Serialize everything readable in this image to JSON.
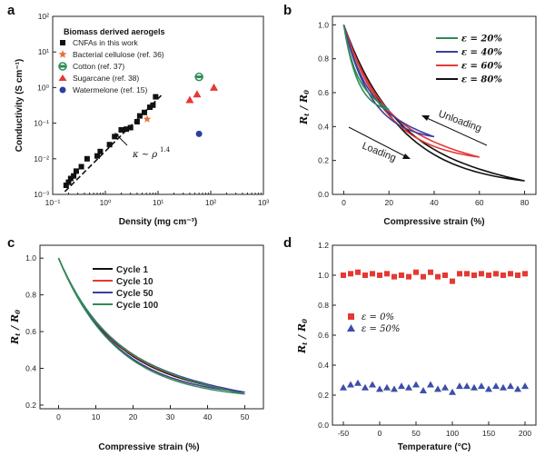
{
  "colors": {
    "axis": "#222222",
    "black": "#111111",
    "red": "#e53935",
    "green": "#2e8b57",
    "blue": "#3e3e9e",
    "orange": "#e8703a",
    "navy": "#2b3f9e",
    "sq_red": "#e53935",
    "tri_blue": "#3c4fa8"
  },
  "chart_data": [
    {
      "panel": "a",
      "type": "scatter",
      "xscale": "log",
      "yscale": "log",
      "xlim": [
        0.1,
        1000
      ],
      "ylim": [
        0.001,
        100
      ],
      "xlabel": "Density (mg cm⁻³)",
      "ylabel": "Conductivity (S cm⁻¹)",
      "xticks": [
        "10⁻¹",
        "10⁰",
        "10¹",
        "10²",
        "10³"
      ],
      "yticks": [
        "10⁻³",
        "10⁻²",
        "10⁻¹",
        "10⁰",
        "10¹",
        "10²"
      ],
      "legend_title": "Biomass derived aerogels",
      "legend_items": [
        "CNFAs in this work",
        "Bacterial cellulose (ref. 36)",
        "Cotton (ref. 37)",
        "Sugarcane (ref. 38)",
        "Watermelone (ref. 15)"
      ],
      "series": [
        {
          "name": "CNFAs in this work",
          "x": [
            0.18,
            0.2,
            0.22,
            0.25,
            0.28,
            0.35,
            0.45,
            0.7,
            0.8,
            1.2,
            1.5,
            2.0,
            2.5,
            3.0,
            4.0,
            4.5,
            5.5,
            7.0,
            8.0,
            9.0
          ],
          "y": [
            0.0018,
            0.0022,
            0.0028,
            0.0033,
            0.0045,
            0.006,
            0.01,
            0.012,
            0.016,
            0.025,
            0.042,
            0.065,
            0.068,
            0.075,
            0.11,
            0.16,
            0.2,
            0.28,
            0.32,
            0.55
          ]
        },
        {
          "name": "Bacterial cellulose (ref. 36)",
          "x": [
            6.2
          ],
          "y": [
            0.13
          ]
        },
        {
          "name": "Cotton (ref. 37)",
          "x": [
            60
          ],
          "y": [
            2.0
          ]
        },
        {
          "name": "Sugarcane (ref. 38)",
          "x": [
            40,
            55,
            115
          ],
          "y": [
            0.45,
            0.65,
            1.0
          ]
        },
        {
          "name": "Watermelone (ref. 15)",
          "x": [
            60
          ],
          "y": [
            0.05
          ]
        }
      ],
      "fit_line": {
        "x": [
          0.17,
          11.5
        ],
        "y": [
          0.0012,
          0.6
        ]
      },
      "annotation": "κ ~ ρ",
      "annotation_exp": "1.4"
    },
    {
      "panel": "b",
      "type": "line",
      "xlim": [
        -5,
        85
      ],
      "ylim": [
        0,
        1.05
      ],
      "xlabel": "Compressive strain (%)",
      "ylabel": "R_t / R_0",
      "xticks": [
        0,
        20,
        40,
        60,
        80
      ],
      "yticks": [
        0.0,
        0.2,
        0.4,
        0.6,
        0.8,
        1.0
      ],
      "legend_items": [
        "ε = 20%",
        "ε = 40%",
        "ε = 60%",
        "ε = 80%"
      ],
      "arrow_labels": [
        "Unloading",
        "Loading"
      ],
      "series": [
        {
          "name": "ε = 20%",
          "max_strain": 20,
          "min_value": 0.5
        },
        {
          "name": "ε = 40%",
          "max_strain": 40,
          "min_value": 0.34
        },
        {
          "name": "ε = 60%",
          "max_strain": 60,
          "min_value": 0.22
        },
        {
          "name": "ε = 80%",
          "max_strain": 80,
          "min_value": 0.08
        }
      ]
    },
    {
      "panel": "c",
      "type": "line",
      "xlim": [
        -5,
        55
      ],
      "ylim": [
        0.18,
        1.07
      ],
      "xlabel": "Compressive strain (%)",
      "ylabel": "R_t / R_0",
      "xticks": [
        0,
        10,
        20,
        30,
        40,
        50
      ],
      "yticks": [
        0.2,
        0.4,
        0.6,
        0.8,
        1.0
      ],
      "legend_items": [
        "Cycle 1",
        "Cycle 10",
        "Cycle 50",
        "Cycle 100"
      ],
      "series": [
        {
          "name": "Cycle 1",
          "max_strain": 50,
          "min_value": 0.27
        },
        {
          "name": "Cycle 10",
          "max_strain": 50,
          "min_value": 0.27
        },
        {
          "name": "Cycle 50",
          "max_strain": 50,
          "min_value": 0.27
        },
        {
          "name": "Cycle 100",
          "max_strain": 50,
          "min_value": 0.26
        }
      ]
    },
    {
      "panel": "d",
      "type": "scatter",
      "xlim": [
        -65,
        215
      ],
      "ylim": [
        0,
        1.2
      ],
      "xlabel": "Temperature (°C)",
      "ylabel": "R_t / R_0",
      "xticks": [
        -50,
        0,
        50,
        100,
        150,
        200
      ],
      "yticks": [
        0.0,
        0.2,
        0.4,
        0.6,
        0.8,
        1.0,
        1.2
      ],
      "legend_items": [
        "ε = 0%",
        "ε = 50%"
      ],
      "series": [
        {
          "name": "ε = 0%",
          "x": [
            -50,
            -40,
            -30,
            -20,
            -10,
            0,
            10,
            20,
            30,
            40,
            50,
            60,
            70,
            80,
            90,
            100,
            110,
            120,
            130,
            140,
            150,
            160,
            170,
            180,
            190,
            200
          ],
          "y": [
            1.0,
            1.01,
            1.02,
            1.0,
            1.01,
            1.0,
            1.01,
            0.99,
            1.0,
            0.99,
            1.02,
            0.99,
            1.02,
            0.99,
            1.0,
            0.96,
            1.01,
            1.01,
            1.0,
            1.01,
            1.0,
            1.01,
            1.0,
            1.01,
            1.0,
            1.01
          ]
        },
        {
          "name": "ε = 50%",
          "x": [
            -50,
            -40,
            -30,
            -20,
            -10,
            0,
            10,
            20,
            30,
            40,
            50,
            60,
            70,
            80,
            90,
            100,
            110,
            120,
            130,
            140,
            150,
            160,
            170,
            180,
            190,
            200
          ],
          "y": [
            0.25,
            0.27,
            0.28,
            0.25,
            0.27,
            0.24,
            0.25,
            0.24,
            0.26,
            0.25,
            0.27,
            0.23,
            0.27,
            0.24,
            0.25,
            0.22,
            0.26,
            0.26,
            0.25,
            0.26,
            0.24,
            0.26,
            0.25,
            0.26,
            0.24,
            0.26
          ]
        }
      ]
    }
  ]
}
